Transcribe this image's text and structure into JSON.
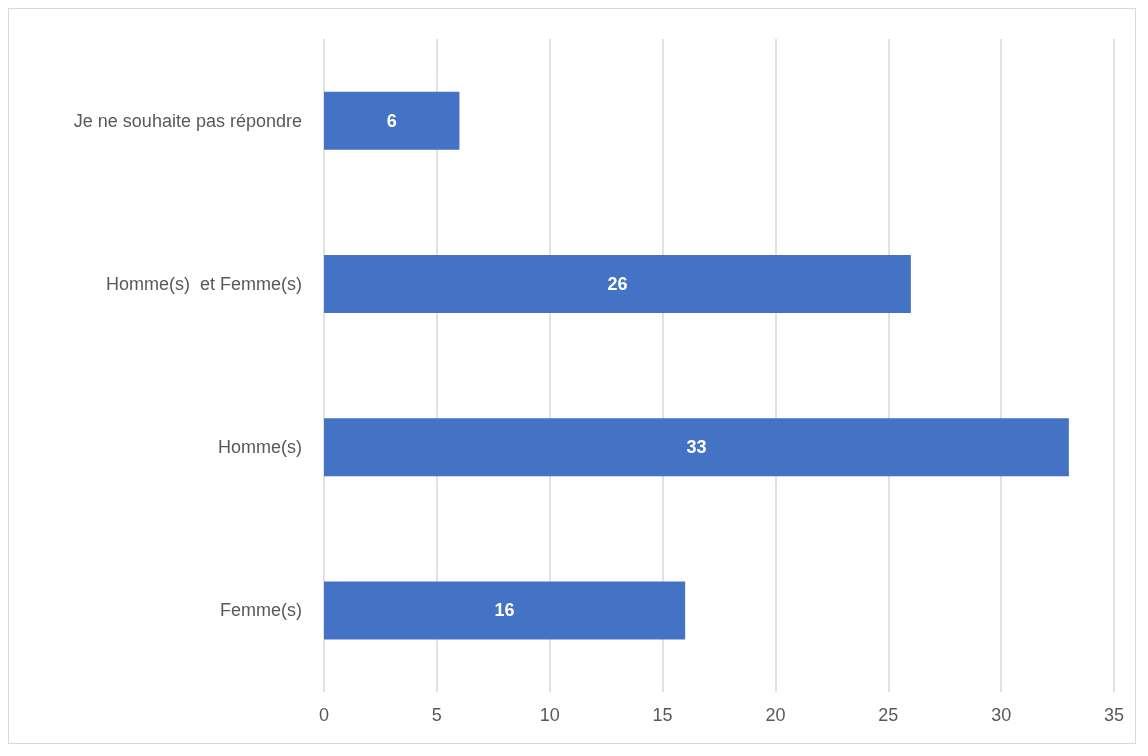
{
  "chart_data": {
    "type": "bar",
    "orientation": "horizontal",
    "categories": [
      "Je ne souhaite pas répondre",
      "Homme(s)  et Femme(s)",
      "Homme(s)",
      "Femme(s)"
    ],
    "values": [
      6,
      26,
      33,
      16
    ],
    "color": "#4472c4",
    "xlim": [
      0,
      35
    ],
    "xticks": [
      0,
      5,
      10,
      15,
      20,
      25,
      30,
      35
    ],
    "grid": "x",
    "data_labels": true
  }
}
